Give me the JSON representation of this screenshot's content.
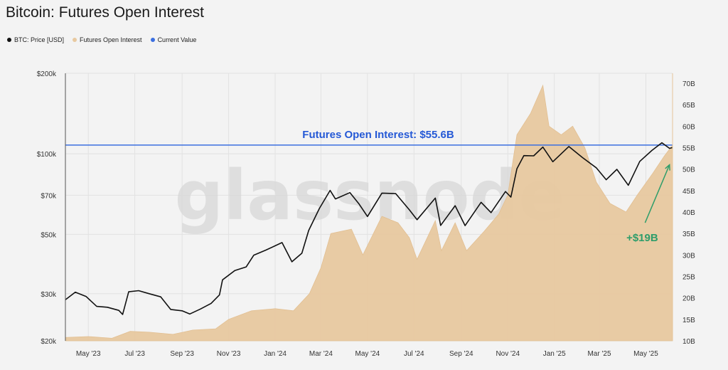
{
  "title": "Bitcoin: Futures Open Interest",
  "legend": [
    {
      "label": "BTC: Price [USD]",
      "color": "#111111"
    },
    {
      "label": "Futures Open Interest",
      "color": "#e8c9a0"
    },
    {
      "label": "Current Value",
      "color": "#3b6fe0"
    }
  ],
  "watermark": "glassnode",
  "chart_data": {
    "type": "line",
    "title": "Bitcoin: Futures Open Interest",
    "x_range": [
      "2023-04-01",
      "2025-06-05"
    ],
    "x_ticks": [
      {
        "date": "2023-05-01",
        "label": "May '23"
      },
      {
        "date": "2023-07-01",
        "label": "Jul '23"
      },
      {
        "date": "2023-09-01",
        "label": "Sep '23"
      },
      {
        "date": "2023-11-01",
        "label": "Nov '23"
      },
      {
        "date": "2024-01-01",
        "label": "Jan '24"
      },
      {
        "date": "2024-03-01",
        "label": "Mar '24"
      },
      {
        "date": "2024-05-01",
        "label": "May '24"
      },
      {
        "date": "2024-07-01",
        "label": "Jul '24"
      },
      {
        "date": "2024-09-01",
        "label": "Sep '24"
      },
      {
        "date": "2024-11-01",
        "label": "Nov '24"
      },
      {
        "date": "2025-01-01",
        "label": "Jan '25"
      },
      {
        "date": "2025-03-01",
        "label": "Mar '25"
      },
      {
        "date": "2025-05-01",
        "label": "May '25"
      }
    ],
    "y_left": {
      "scale": "log",
      "range": [
        20000,
        200000
      ],
      "ticks": [
        {
          "value": 20000,
          "label": "$20k"
        },
        {
          "value": 30000,
          "label": "$30k"
        },
        {
          "value": 50000,
          "label": "$50k"
        },
        {
          "value": 70000,
          "label": "$70k"
        },
        {
          "value": 100000,
          "label": "$100k"
        },
        {
          "value": 200000,
          "label": "$200k"
        }
      ]
    },
    "y_right": {
      "scale": "linear",
      "range": [
        10,
        70
      ],
      "ticks": [
        {
          "value": 10,
          "label": "10B"
        },
        {
          "value": 15,
          "label": "15B"
        },
        {
          "value": 20,
          "label": "20B"
        },
        {
          "value": 25,
          "label": "25B"
        },
        {
          "value": 30,
          "label": "30B"
        },
        {
          "value": 35,
          "label": "35B"
        },
        {
          "value": 40,
          "label": "40B"
        },
        {
          "value": 45,
          "label": "45B"
        },
        {
          "value": 50,
          "label": "50B"
        },
        {
          "value": 55,
          "label": "55B"
        },
        {
          "value": 60,
          "label": "60B"
        },
        {
          "value": 65,
          "label": "65B"
        },
        {
          "value": 70,
          "label": "70B"
        }
      ]
    },
    "grid": true,
    "series": [
      {
        "name": "BTC: Price [USD]",
        "axis": "left",
        "color": "#111111",
        "points": [
          [
            "2023-04-01",
            28500
          ],
          [
            "2023-04-14",
            30400
          ],
          [
            "2023-04-28",
            29300
          ],
          [
            "2023-05-12",
            26900
          ],
          [
            "2023-05-26",
            26700
          ],
          [
            "2023-06-10",
            26000
          ],
          [
            "2023-06-15",
            25100
          ],
          [
            "2023-06-23",
            30500
          ],
          [
            "2023-07-06",
            30800
          ],
          [
            "2023-07-20",
            30000
          ],
          [
            "2023-08-04",
            29200
          ],
          [
            "2023-08-17",
            26200
          ],
          [
            "2023-09-01",
            25900
          ],
          [
            "2023-09-11",
            25200
          ],
          [
            "2023-09-25",
            26300
          ],
          [
            "2023-10-09",
            27600
          ],
          [
            "2023-10-20",
            29700
          ],
          [
            "2023-10-24",
            33800
          ],
          [
            "2023-11-09",
            36600
          ],
          [
            "2023-11-24",
            37800
          ],
          [
            "2023-12-04",
            41800
          ],
          [
            "2023-12-20",
            43700
          ],
          [
            "2024-01-10",
            46600
          ],
          [
            "2024-01-23",
            39500
          ],
          [
            "2024-02-05",
            42500
          ],
          [
            "2024-02-14",
            51700
          ],
          [
            "2024-02-28",
            62500
          ],
          [
            "2024-03-13",
            73000
          ],
          [
            "2024-03-20",
            67800
          ],
          [
            "2024-04-08",
            71600
          ],
          [
            "2024-04-20",
            64900
          ],
          [
            "2024-05-01",
            58300
          ],
          [
            "2024-05-20",
            71300
          ],
          [
            "2024-06-07",
            71000
          ],
          [
            "2024-06-25",
            61700
          ],
          [
            "2024-07-05",
            56700
          ],
          [
            "2024-07-29",
            68300
          ],
          [
            "2024-08-05",
            54000
          ],
          [
            "2024-08-24",
            64000
          ],
          [
            "2024-09-06",
            53900
          ],
          [
            "2024-09-27",
            65900
          ],
          [
            "2024-10-10",
            60300
          ],
          [
            "2024-10-29",
            72300
          ],
          [
            "2024-11-05",
            68900
          ],
          [
            "2024-11-13",
            88000
          ],
          [
            "2024-11-22",
            98500
          ],
          [
            "2024-12-05",
            98300
          ],
          [
            "2024-12-17",
            106000
          ],
          [
            "2024-12-30",
            93400
          ],
          [
            "2025-01-20",
            106500
          ],
          [
            "2025-02-07",
            96800
          ],
          [
            "2025-02-25",
            88700
          ],
          [
            "2025-03-10",
            80000
          ],
          [
            "2025-03-24",
            87500
          ],
          [
            "2025-04-08",
            76300
          ],
          [
            "2025-04-23",
            93700
          ],
          [
            "2025-05-09",
            103000
          ],
          [
            "2025-05-22",
            110000
          ],
          [
            "2025-06-01",
            104800
          ],
          [
            "2025-06-05",
            105500
          ]
        ]
      },
      {
        "name": "Futures Open Interest",
        "axis": "right",
        "color": "#e8c9a0",
        "type": "area",
        "points": [
          [
            "2023-04-01",
            10.8
          ],
          [
            "2023-05-01",
            11.0
          ],
          [
            "2023-06-01",
            10.6
          ],
          [
            "2023-06-25",
            12.2
          ],
          [
            "2023-07-20",
            12.0
          ],
          [
            "2023-08-20",
            11.5
          ],
          [
            "2023-09-15",
            12.5
          ],
          [
            "2023-10-15",
            12.8
          ],
          [
            "2023-11-01",
            15.0
          ],
          [
            "2023-12-01",
            17.0
          ],
          [
            "2024-01-01",
            17.5
          ],
          [
            "2024-01-25",
            17.0
          ],
          [
            "2024-02-15",
            21.0
          ],
          [
            "2024-03-01",
            27.0
          ],
          [
            "2024-03-14",
            35.0
          ],
          [
            "2024-04-10",
            36.0
          ],
          [
            "2024-04-25",
            30.0
          ],
          [
            "2024-05-20",
            39.0
          ],
          [
            "2024-06-10",
            37.5
          ],
          [
            "2024-06-25",
            34.0
          ],
          [
            "2024-07-05",
            29.0
          ],
          [
            "2024-07-29",
            38.0
          ],
          [
            "2024-08-06",
            31.0
          ],
          [
            "2024-08-24",
            37.5
          ],
          [
            "2024-09-08",
            31.0
          ],
          [
            "2024-10-01",
            35.5
          ],
          [
            "2024-10-20",
            39.5
          ],
          [
            "2024-11-01",
            44.0
          ],
          [
            "2024-11-13",
            58.0
          ],
          [
            "2024-12-01",
            63.0
          ],
          [
            "2024-12-17",
            69.5
          ],
          [
            "2024-12-25",
            60.0
          ],
          [
            "2025-01-10",
            58.0
          ],
          [
            "2025-01-25",
            60.0
          ],
          [
            "2025-02-10",
            55.0
          ],
          [
            "2025-02-25",
            47.0
          ],
          [
            "2025-03-15",
            42.0
          ],
          [
            "2025-04-05",
            40.0
          ],
          [
            "2025-04-20",
            44.0
          ],
          [
            "2025-05-10",
            49.0
          ],
          [
            "2025-05-25",
            53.0
          ],
          [
            "2025-06-05",
            55.6
          ]
        ]
      }
    ],
    "reference_line": {
      "name": "Current Value",
      "axis": "right",
      "value": 55.6,
      "color": "#3b6fe0",
      "label": "Futures Open Interest: $55.6B"
    },
    "annotation": {
      "text": "+$19B",
      "color": "#2e9d6a",
      "arrow_from": [
        "2025-04-30",
        37.5
      ],
      "arrow_to": [
        "2025-06-01",
        51.0
      ]
    }
  }
}
